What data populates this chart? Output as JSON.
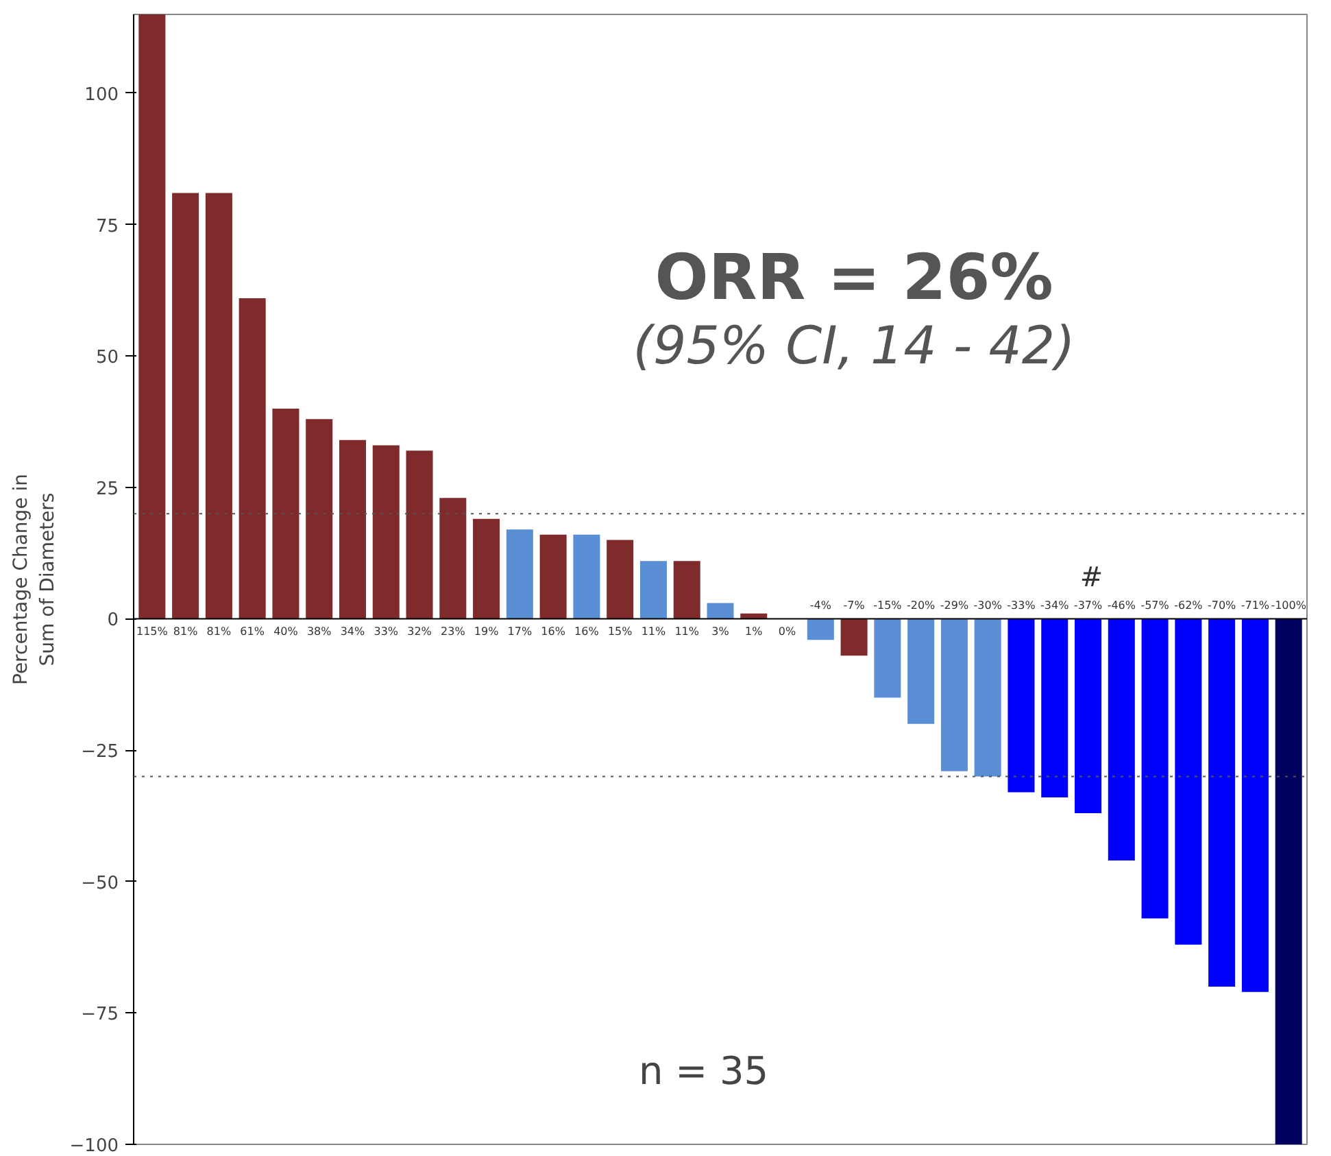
{
  "chart_data": {
    "type": "bar",
    "ylabel": "Percentage Change in\nSum of Diameters",
    "categories": [
      null,
      null,
      null,
      null,
      null,
      null,
      null,
      null,
      null,
      null,
      null,
      null,
      null,
      null,
      null,
      null,
      null,
      null,
      null,
      null,
      null,
      null,
      null,
      null,
      null,
      null,
      null,
      null,
      null,
      null,
      null,
      null,
      null,
      null,
      null
    ],
    "values": [
      115,
      81,
      81,
      61,
      40,
      38,
      34,
      33,
      32,
      23,
      19,
      17,
      16,
      16,
      15,
      11,
      11,
      3,
      1,
      0,
      -4,
      -7,
      -15,
      -20,
      -29,
      -30,
      -33,
      -34,
      -37,
      -46,
      -57,
      -62,
      -70,
      -71,
      -100
    ],
    "value_labels": [
      "115%",
      "81%",
      "81%",
      "61%",
      "40%",
      "38%",
      "34%",
      "33%",
      "32%",
      "23%",
      "19%",
      "17%",
      "16%",
      "16%",
      "15%",
      "11%",
      "11%",
      "3%",
      "1%",
      "0%",
      "-4%",
      "-7%",
      "-15%",
      "-20%",
      "-29%",
      "-30%",
      "-33%",
      "-34%",
      "-37%",
      "-46%",
      "-57%",
      "-62%",
      "-70%",
      "-71%",
      "-100%"
    ],
    "colors": [
      "#7f2a2b",
      "#7f2a2b",
      "#7f2a2b",
      "#7f2a2b",
      "#7f2a2b",
      "#7f2a2b",
      "#7f2a2b",
      "#7f2a2b",
      "#7f2a2b",
      "#7f2a2b",
      "#7f2a2b",
      "#5a8fd6",
      "#7f2a2b",
      "#5a8fd6",
      "#7f2a2b",
      "#5a8fd6",
      "#7f2a2b",
      "#5a8fd6",
      "#7f2a2b",
      "#7f2a2b",
      "#5a8fd6",
      "#7f2a2b",
      "#5a8fd6",
      "#5a8fd6",
      "#5a8fd6",
      "#5a8fd6",
      "#0000ff",
      "#0000ff",
      "#0000ff",
      "#0000ff",
      "#0000ff",
      "#0000ff",
      "#0000ff",
      "#0000ff",
      "#00005e"
    ],
    "ylim": [
      -100,
      115
    ],
    "yticks": [
      -100,
      -75,
      -50,
      -25,
      0,
      25,
      50,
      75,
      100
    ],
    "ref_lines": [
      {
        "axis": "y",
        "value": 0,
        "line_style": "solid",
        "color": "#000000"
      },
      {
        "axis": "y",
        "value": 20,
        "line_style": "dotted",
        "color": "#555555"
      },
      {
        "axis": "y",
        "value": -30,
        "line_style": "dotted",
        "color": "#555555"
      }
    ],
    "annotations": [
      "ORR = 26%",
      "(95% CI, 14 - 42)",
      "#",
      "n = 35"
    ],
    "grid": false
  }
}
